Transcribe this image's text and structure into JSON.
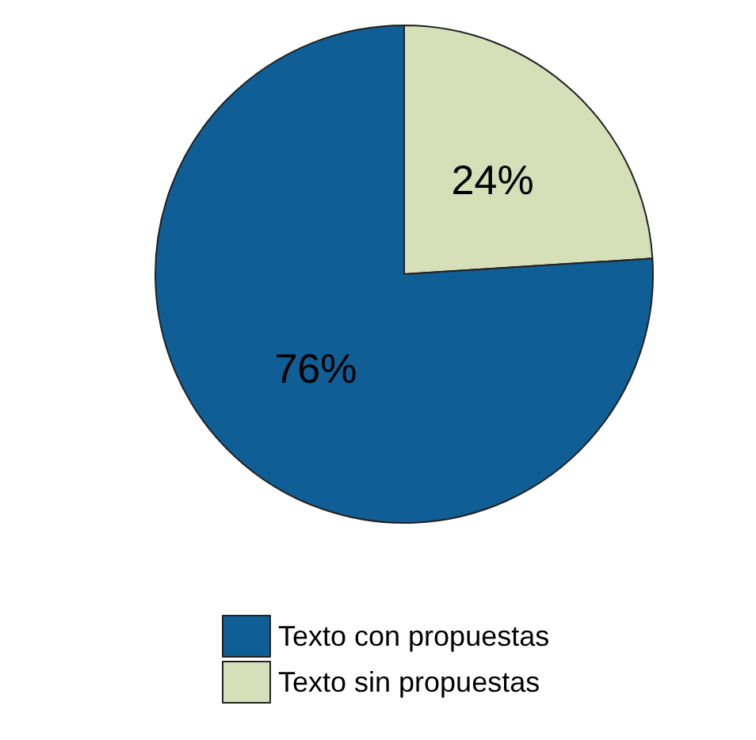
{
  "chart_data": {
    "type": "pie",
    "categories": [
      "Texto sin propuestas",
      "Texto con propuestas"
    ],
    "values": [
      24,
      76
    ],
    "colors": [
      "#d6dfb8",
      "#0f5f96"
    ],
    "value_labels": [
      "24%",
      "76%"
    ],
    "legend": "bottom"
  }
}
